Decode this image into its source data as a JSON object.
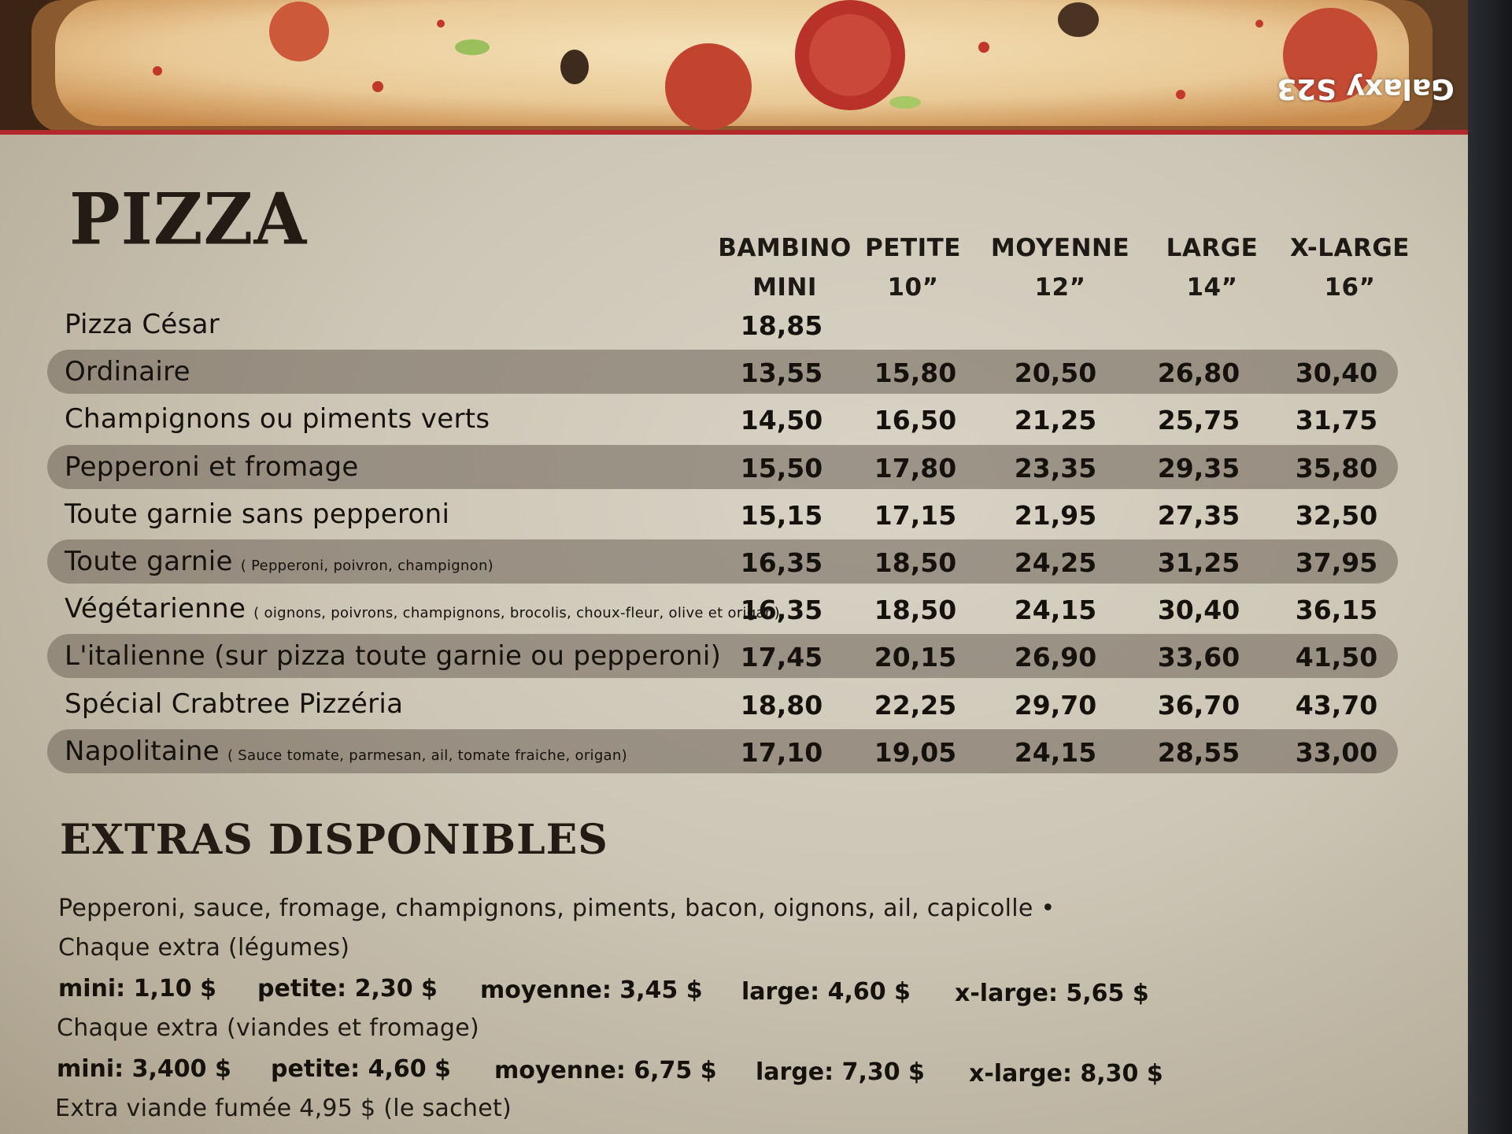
{
  "watermark": "Galaxy S23",
  "menu": {
    "title": "PIZZA",
    "columns": [
      {
        "line1": "BAMBINO",
        "line2": "MINI"
      },
      {
        "line1": "PETITE",
        "line2": "10”"
      },
      {
        "line1": "MOYENNE",
        "line2": "12”"
      },
      {
        "line1": "LARGE",
        "line2": "14”"
      },
      {
        "line1": "X-LARGE",
        "line2": "16”"
      }
    ],
    "rows": [
      {
        "name": "Pizza César",
        "desc": "",
        "prices": [
          "18,85",
          "",
          "",
          "",
          ""
        ],
        "shaded": false
      },
      {
        "name": "Ordinaire",
        "desc": "",
        "prices": [
          "13,55",
          "15,80",
          "20,50",
          "26,80",
          "30,40"
        ],
        "shaded": true
      },
      {
        "name": "Champignons ou piments verts",
        "desc": "",
        "prices": [
          "14,50",
          "16,50",
          "21,25",
          "25,75",
          "31,75"
        ],
        "shaded": false
      },
      {
        "name": "Pepperoni et fromage",
        "desc": "",
        "prices": [
          "15,50",
          "17,80",
          "23,35",
          "29,35",
          "35,80"
        ],
        "shaded": true
      },
      {
        "name": "Toute garnie sans pepperoni",
        "desc": "",
        "prices": [
          "15,15",
          "17,15",
          "21,95",
          "27,35",
          "32,50"
        ],
        "shaded": false
      },
      {
        "name": "Toute garnie",
        "desc": "( Pepperoni, poivron, champignon)",
        "prices": [
          "16,35",
          "18,50",
          "24,25",
          "31,25",
          "37,95"
        ],
        "shaded": true
      },
      {
        "name": "Végétarienne",
        "desc": "( oignons, poivrons, champignons, brocolis, choux-fleur, olive et origan)",
        "prices": [
          "16,35",
          "18,50",
          "24,15",
          "30,40",
          "36,15"
        ],
        "shaded": false
      },
      {
        "name": "L'italienne (sur pizza toute garnie ou pepperoni)",
        "desc": "",
        "prices": [
          "17,45",
          "20,15",
          "26,90",
          "33,60",
          "41,50"
        ],
        "shaded": true
      },
      {
        "name": "Spécial Crabtree Pizzéria",
        "desc": "",
        "prices": [
          "18,80",
          "22,25",
          "29,70",
          "36,70",
          "43,70"
        ],
        "shaded": false
      },
      {
        "name": "Napolitaine",
        "desc": "( Sauce tomate, parmesan, ail, tomate fraiche, origan)",
        "prices": [
          "17,10",
          "19,05",
          "24,15",
          "28,55",
          "33,00"
        ],
        "shaded": true
      }
    ]
  },
  "extras": {
    "title": "EXTRAS DISPONIBLES",
    "list": "Pepperoni, sauce, fromage, champignons, piments, bacon, oignons, ail, capicolle •",
    "vegetables_label": "Chaque extra (légumes)",
    "vegetables_prices": [
      "mini: 1,10 $",
      "petite: 2,30 $",
      "moyenne: 3,45 $",
      "large: 4,60 $",
      "x-large: 5,65 $"
    ],
    "meats_label": "Chaque extra (viandes et fromage)",
    "meats_prices": [
      "mini: 3,400 $",
      "petite: 4,60 $",
      "moyenne: 6,75 $",
      "large: 7,30 $",
      "x-large: 8,30 $"
    ],
    "smoked_meat": "Extra viande fumée  4,95 $ (le sachet)"
  }
}
